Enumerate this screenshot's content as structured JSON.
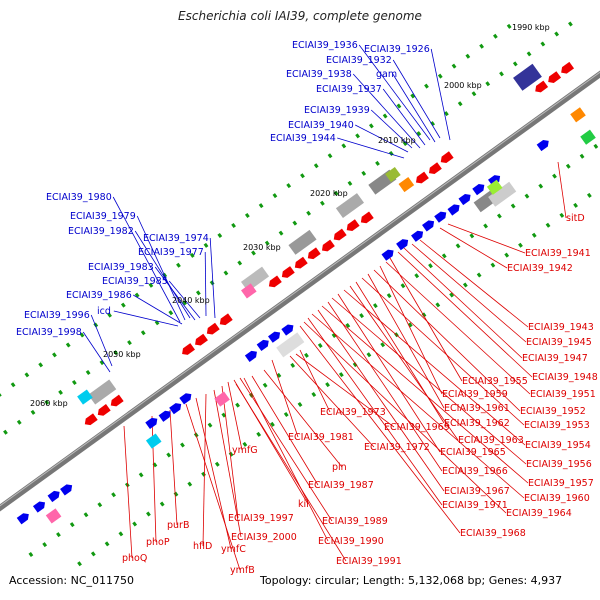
{
  "title": "Escherichia coli IAI39, complete genome",
  "footer": {
    "accession": "Accession: NC_011750",
    "summary": "Topology: circular; Length: 5,132,068 bp; Genes: 4,937"
  },
  "colors": {
    "forward_label": "#0000cc",
    "reverse_label": "#dd0000",
    "forward_gene": "#0000ee",
    "reverse_gene": "#ee0000",
    "backbone": "#777777",
    "tick": "#119911"
  },
  "scale": {
    "unit": "kbp",
    "ticks": [
      "1990 kbp",
      "2000 kbp",
      "2010 kbp",
      "2020 kbp",
      "2030 kbp",
      "2040 kbp",
      "2050 kbp",
      "2060 kbp"
    ]
  },
  "forward_labels": [
    "ECIAI39_1936",
    "ECIAI39_1926",
    "ECIAI39_1932",
    "ECIAI39_1938",
    "gam",
    "ECIAI39_1937",
    "ECIAI39_1939",
    "ECIAI39_1940",
    "ECIAI39_1944",
    "ECIAI39_1980",
    "ECIAI39_1979",
    "ECIAI39_1982",
    "ECIAI39_1974",
    "ECIAI39_1977",
    "ECIAI39_1983",
    "ECIAI39_1985",
    "ECIAI39_1986",
    "icd",
    "ECIAI39_1996",
    "ECIAI39_1998"
  ],
  "reverse_labels_right": [
    "sitD",
    "ECIAI39_1941",
    "ECIAI39_1942",
    "ECIAI39_1943",
    "ECIAI39_1945",
    "ECIAI39_1947",
    "ECIAI39_1948",
    "ECIAI39_1955",
    "ECIAI39_1951",
    "ECIAI39_1959",
    "ECIAI39_1952",
    "ECIAI39_1961",
    "ECIAI39_1953",
    "ECIAI39_1962",
    "ECIAI39_1963",
    "ECIAI39_1954",
    "ECIAI39_1965",
    "ECIAI39_1956",
    "ECIAI39_1966",
    "ECIAI39_1957",
    "ECIAI39_1967",
    "ECIAI39_1960",
    "ECIAI39_1971",
    "ECIAI39_1964",
    "ECIAI39_1968"
  ],
  "reverse_labels_bottom": [
    "ECIAI39_1973",
    "ECIAI39_1969",
    "ECIAI39_1981",
    "ECIAI39_1972",
    "pin",
    "ECIAI39_1987",
    "ymfG",
    "kil",
    "ECIAI39_1989",
    "ECIAI39_1997",
    "ECIAI39_1990",
    "ECIAI39_2000",
    "ECIAI39_1991",
    "hflD",
    "ymfC",
    "purB",
    "phoP",
    "ymfB",
    "phoQ"
  ]
}
